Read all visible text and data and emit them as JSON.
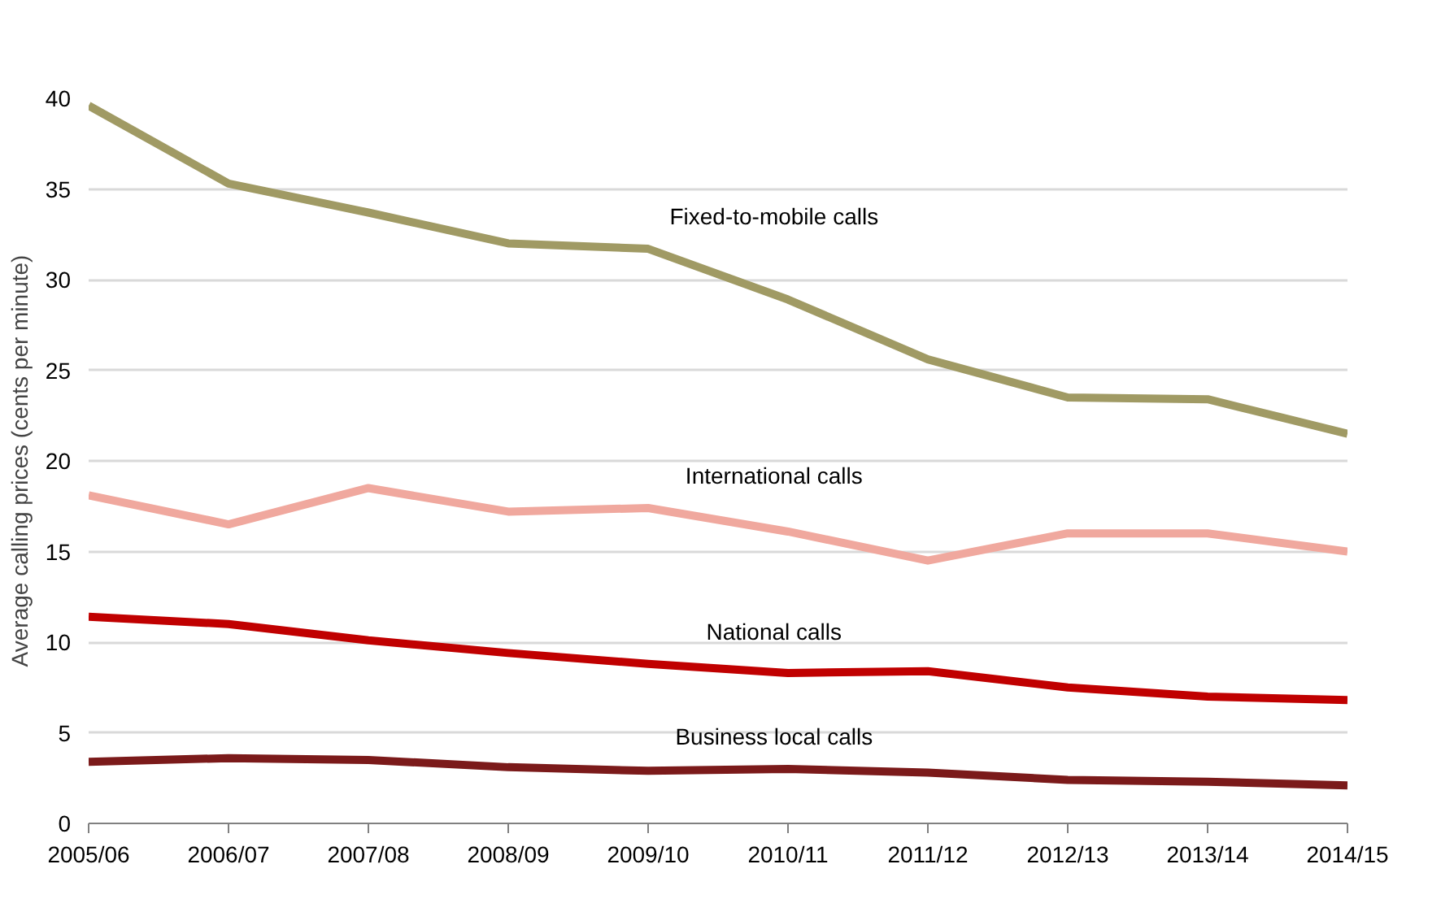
{
  "chart_data": {
    "type": "line",
    "ylabel": "Average calling prices (cents per minute)",
    "categories": [
      "2005/06",
      "2006/07",
      "2007/08",
      "2008/09",
      "2009/10",
      "2010/11",
      "2011/12",
      "2012/13",
      "2013/14",
      "2014/15"
    ],
    "series": [
      {
        "name": "Fixed-to-mobile calls",
        "color": "#a09a64",
        "values": [
          39.6,
          35.3,
          33.7,
          32.0,
          31.7,
          28.9,
          25.6,
          23.5,
          23.4,
          21.5
        ]
      },
      {
        "name": "International calls",
        "color": "#f0a89e",
        "values": [
          18.1,
          16.5,
          18.5,
          17.2,
          17.4,
          16.1,
          14.5,
          16.0,
          16.0,
          15.0
        ]
      },
      {
        "name": "National calls",
        "color": "#c00000",
        "values": [
          11.4,
          11.0,
          10.1,
          9.4,
          8.8,
          8.3,
          8.4,
          7.5,
          7.0,
          6.8
        ]
      },
      {
        "name": "Business local calls",
        "color": "#7b1a1a",
        "values": [
          3.4,
          3.6,
          3.5,
          3.1,
          2.9,
          3.0,
          2.8,
          2.4,
          2.3,
          2.1
        ]
      }
    ],
    "ylim": [
      0,
      40
    ],
    "yticks": [
      0,
      5,
      10,
      15,
      20,
      25,
      30,
      35,
      40
    ],
    "grid": "y",
    "marker": "none",
    "line_style": "solid"
  }
}
